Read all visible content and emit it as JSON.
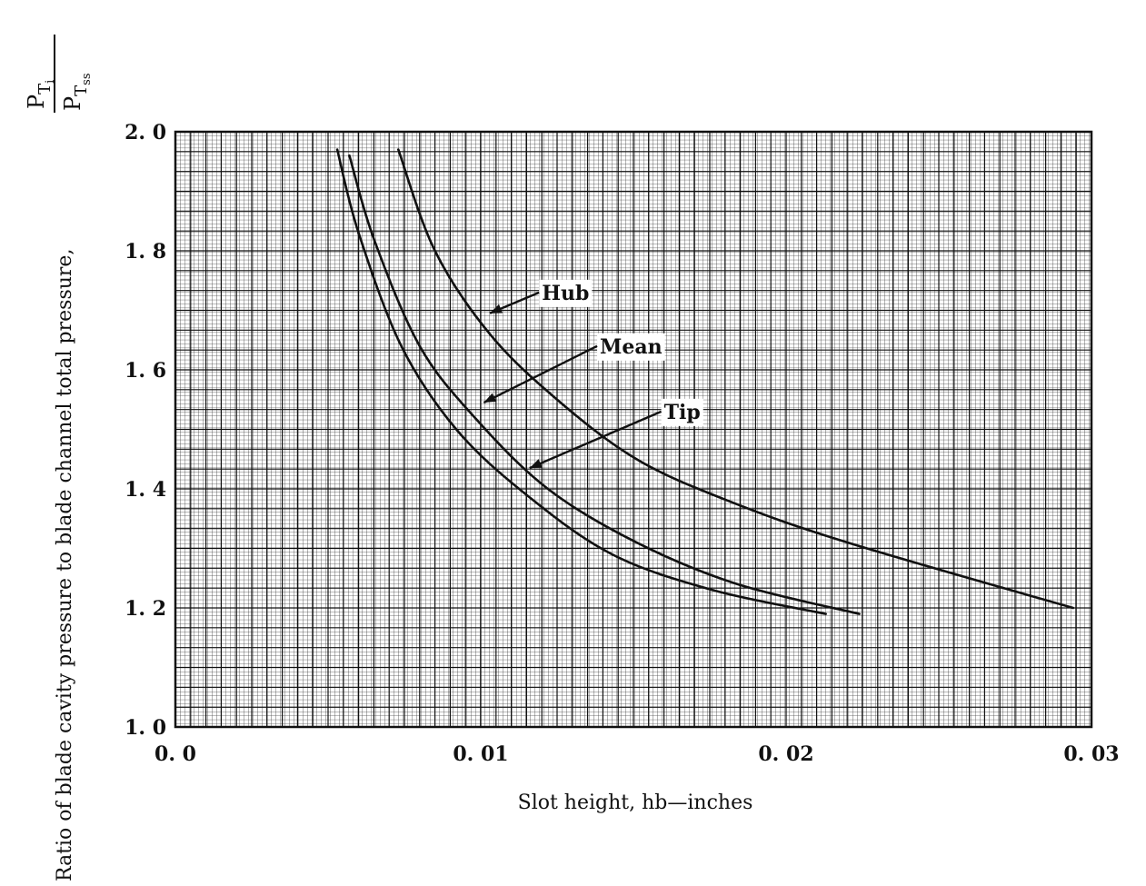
{
  "chart_data": {
    "type": "line",
    "xlabel": "Slot height, hb—inches",
    "ylabel": "Ratio of blade cavity pressure to blade channel total pressure,",
    "ylabel_symbol": {
      "num_base": "P",
      "num_sub": "T",
      "num_subsub": "i",
      "den_base": "P",
      "den_sub": "T",
      "den_subsub": "ss"
    },
    "xlim": [
      0.0,
      0.03
    ],
    "ylim": [
      1.0,
      2.0
    ],
    "x_ticks": [
      0.0,
      0.01,
      0.02,
      0.03
    ],
    "x_tick_labels": [
      "0. 0",
      "0. 01",
      "0. 02",
      "0. 03"
    ],
    "y_ticks": [
      1.0,
      1.2,
      1.4,
      1.6,
      1.8,
      2.0
    ],
    "y_tick_labels": [
      "1. 0",
      "1. 2",
      "1. 4",
      "1. 6",
      "1. 8",
      "2. 0"
    ],
    "grid": true,
    "series": [
      {
        "name": "Hub",
        "x": [
          0.0073,
          0.0085,
          0.0103,
          0.0125,
          0.0151,
          0.0181,
          0.022,
          0.0294
        ],
        "y": [
          1.97,
          1.8,
          1.66,
          1.55,
          1.45,
          1.38,
          1.31,
          1.2
        ]
      },
      {
        "name": "Mean",
        "x": [
          0.0057,
          0.0065,
          0.008,
          0.0098,
          0.0122,
          0.0151,
          0.0184,
          0.0224
        ],
        "y": [
          1.96,
          1.82,
          1.64,
          1.52,
          1.4,
          1.31,
          1.24,
          1.19
        ]
      },
      {
        "name": "Tip",
        "x": [
          0.0053,
          0.006,
          0.0074,
          0.0092,
          0.0115,
          0.0143,
          0.0176,
          0.0213
        ],
        "y": [
          1.97,
          1.83,
          1.64,
          1.5,
          1.39,
          1.29,
          1.23,
          1.19
        ]
      }
    ],
    "annotations": [
      {
        "text": "Hub",
        "x": 0.012,
        "y": 1.73,
        "arrow_to_x": 0.0103,
        "arrow_to_y": 1.695
      },
      {
        "text": "Mean",
        "x": 0.0139,
        "y": 1.64,
        "arrow_to_x": 0.0101,
        "arrow_to_y": 1.545
      },
      {
        "text": "Tip",
        "x": 0.016,
        "y": 1.53,
        "arrow_to_x": 0.0116,
        "arrow_to_y": 1.435
      }
    ]
  }
}
